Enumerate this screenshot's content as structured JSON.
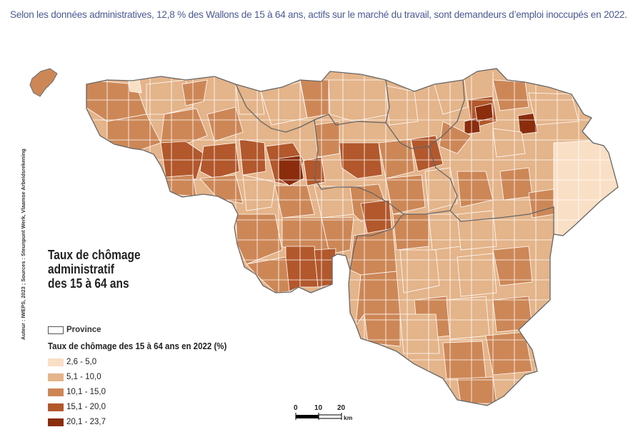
{
  "caption": "Selon les données administratives, 12,8 % des Wallons de 15 à 64 ans, actifs sur le marché du travail, sont demandeurs d’emploi inoccupés en 2022.",
  "credit": "Auteur : IWEPS, 2023 ; Sources : Steunpunt Werk, Vlaamse Arbeidsrekening",
  "map": {
    "title_lines": [
      "Taux de chômage",
      "administratif",
      "des 15 à 64 ans"
    ],
    "province_label": "Province",
    "legend_title": "Taux de chômage des 15 à 64 ans en 2022 (%)",
    "legend": [
      {
        "label": "2,6 - 5,0",
        "color": "#f9dfc5"
      },
      {
        "label": "5,1 - 10,0",
        "color": "#e4b48a"
      },
      {
        "label": "10,1 - 15,0",
        "color": "#cd8757"
      },
      {
        "label": "15,1 - 20,0",
        "color": "#b2582c"
      },
      {
        "label": "20,1 - 23,7",
        "color": "#8b2d0c"
      }
    ],
    "scale": {
      "ticks": [
        "0",
        "10",
        "20"
      ],
      "unit": "km"
    }
  }
}
